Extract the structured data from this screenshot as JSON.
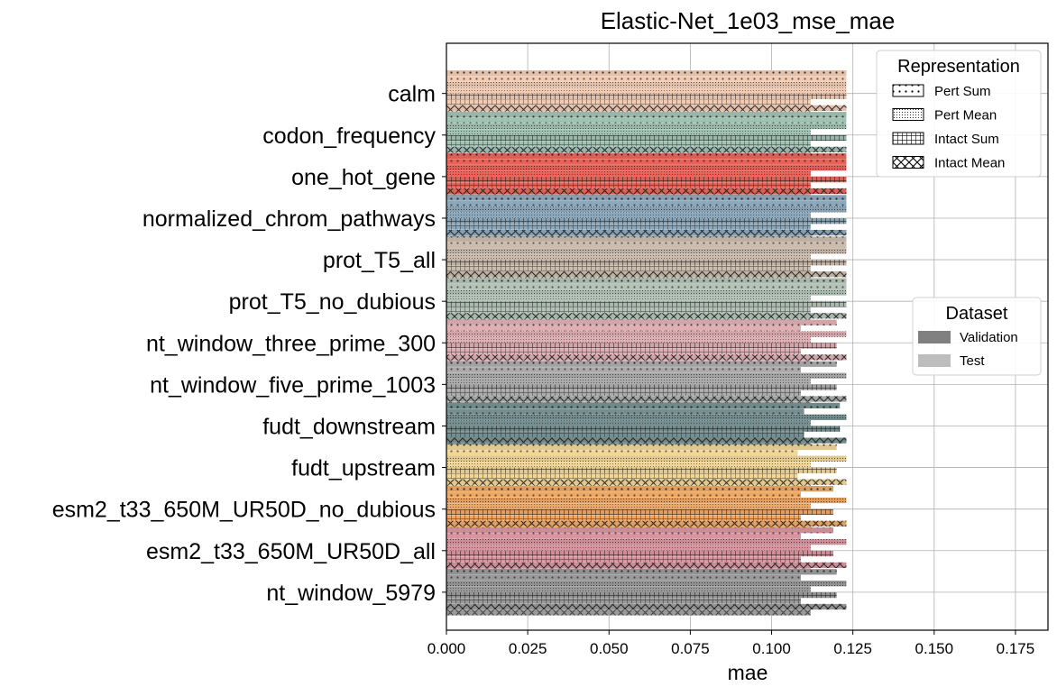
{
  "chart_data": {
    "type": "bar",
    "orientation": "horizontal",
    "title": "Elastic-Net_1e03_mse_mae",
    "xlabel": "mae",
    "ylabel": "",
    "xlim": [
      0,
      0.185
    ],
    "xticks": [
      "0.000",
      "0.025",
      "0.050",
      "0.075",
      "0.100",
      "0.125",
      "0.150",
      "0.175"
    ],
    "grid": true,
    "categories": [
      "calm",
      "codon_frequency",
      "one_hot_gene",
      "normalized_chrom_pathways",
      "prot_T5_all",
      "prot_T5_no_dubious",
      "nt_window_three_prime_300",
      "nt_window_five_prime_1003",
      "fudt_downstream",
      "fudt_upstream",
      "esm2_t33_650M_UR50D_no_dubious",
      "esm2_t33_650M_UR50D_all",
      "nt_window_5979"
    ],
    "category_colors": [
      "#f7cdb3",
      "#9ec3b2",
      "#ee5a4d",
      "#88a7bc",
      "#ccbcab",
      "#b3c4b8",
      "#e3aeb2",
      "#aaaaaa",
      "#6f8b8d",
      "#f6d893",
      "#f5a55c",
      "#dc929d",
      "#969696"
    ],
    "representations": [
      "Pert Sum",
      "Pert Mean",
      "Intact Sum",
      "Intact Mean"
    ],
    "representation_hatches": [
      "dots",
      "dense-dots",
      "grid",
      "cross"
    ],
    "datasets": [
      "Validation",
      "Test"
    ],
    "dataset_colors": [
      "#808080",
      "#bdbdbd"
    ],
    "legend_representation": {
      "title": "Representation",
      "placement": "top-right"
    },
    "legend_dataset": {
      "title": "Dataset",
      "placement": "center-right"
    },
    "series": [
      {
        "category": "calm",
        "representation": "Pert Sum",
        "validation": 0.123,
        "test": 0.123
      },
      {
        "category": "calm",
        "representation": "Pert Mean",
        "validation": 0.123,
        "test": 0.123
      },
      {
        "category": "calm",
        "representation": "Intact Sum",
        "validation": 0.123,
        "test": 0.112
      },
      {
        "category": "calm",
        "representation": "Intact Mean",
        "validation": 0.123,
        "test": 0.112
      },
      {
        "category": "codon_frequency",
        "representation": "Pert Sum",
        "validation": 0.123,
        "test": 0.123
      },
      {
        "category": "codon_frequency",
        "representation": "Pert Mean",
        "validation": 0.123,
        "test": 0.112
      },
      {
        "category": "codon_frequency",
        "representation": "Intact Sum",
        "validation": 0.123,
        "test": 0.112
      },
      {
        "category": "codon_frequency",
        "representation": "Intact Mean",
        "validation": 0.123,
        "test": 0.112
      },
      {
        "category": "one_hot_gene",
        "representation": "Pert Sum",
        "validation": 0.123,
        "test": 0.123
      },
      {
        "category": "one_hot_gene",
        "representation": "Pert Mean",
        "validation": 0.123,
        "test": 0.112
      },
      {
        "category": "one_hot_gene",
        "representation": "Intact Sum",
        "validation": 0.123,
        "test": 0.112
      },
      {
        "category": "one_hot_gene",
        "representation": "Intact Mean",
        "validation": 0.123,
        "test": 0.112
      },
      {
        "category": "normalized_chrom_pathways",
        "representation": "Pert Sum",
        "validation": 0.123,
        "test": 0.123
      },
      {
        "category": "normalized_chrom_pathways",
        "representation": "Pert Mean",
        "validation": 0.123,
        "test": 0.112
      },
      {
        "category": "normalized_chrom_pathways",
        "representation": "Intact Sum",
        "validation": 0.123,
        "test": 0.112
      },
      {
        "category": "normalized_chrom_pathways",
        "representation": "Intact Mean",
        "validation": 0.123,
        "test": 0.112
      },
      {
        "category": "prot_T5_all",
        "representation": "Pert Sum",
        "validation": 0.123,
        "test": 0.123
      },
      {
        "category": "prot_T5_all",
        "representation": "Pert Mean",
        "validation": 0.123,
        "test": 0.112
      },
      {
        "category": "prot_T5_all",
        "representation": "Intact Sum",
        "validation": 0.123,
        "test": 0.112
      },
      {
        "category": "prot_T5_all",
        "representation": "Intact Mean",
        "validation": 0.123,
        "test": 0.112
      },
      {
        "category": "prot_T5_no_dubious",
        "representation": "Pert Sum",
        "validation": 0.123,
        "test": 0.123
      },
      {
        "category": "prot_T5_no_dubious",
        "representation": "Pert Mean",
        "validation": 0.123,
        "test": 0.112
      },
      {
        "category": "prot_T5_no_dubious",
        "representation": "Intact Sum",
        "validation": 0.123,
        "test": 0.112
      },
      {
        "category": "prot_T5_no_dubious",
        "representation": "Intact Mean",
        "validation": 0.123,
        "test": 0.112
      },
      {
        "category": "nt_window_three_prime_300",
        "representation": "Pert Sum",
        "validation": 0.12,
        "test": 0.109
      },
      {
        "category": "nt_window_three_prime_300",
        "representation": "Pert Mean",
        "validation": 0.123,
        "test": 0.112
      },
      {
        "category": "nt_window_three_prime_300",
        "representation": "Intact Sum",
        "validation": 0.12,
        "test": 0.109
      },
      {
        "category": "nt_window_three_prime_300",
        "representation": "Intact Mean",
        "validation": 0.123,
        "test": 0.112
      },
      {
        "category": "nt_window_five_prime_1003",
        "representation": "Pert Sum",
        "validation": 0.12,
        "test": 0.109
      },
      {
        "category": "nt_window_five_prime_1003",
        "representation": "Pert Mean",
        "validation": 0.123,
        "test": 0.112
      },
      {
        "category": "nt_window_five_prime_1003",
        "representation": "Intact Sum",
        "validation": 0.12,
        "test": 0.109
      },
      {
        "category": "nt_window_five_prime_1003",
        "representation": "Intact Mean",
        "validation": 0.123,
        "test": 0.112
      },
      {
        "category": "fudt_downstream",
        "representation": "Pert Sum",
        "validation": 0.121,
        "test": 0.11
      },
      {
        "category": "fudt_downstream",
        "representation": "Pert Mean",
        "validation": 0.123,
        "test": 0.112
      },
      {
        "category": "fudt_downstream",
        "representation": "Intact Sum",
        "validation": 0.121,
        "test": 0.11
      },
      {
        "category": "fudt_downstream",
        "representation": "Intact Mean",
        "validation": 0.123,
        "test": 0.112
      },
      {
        "category": "fudt_upstream",
        "representation": "Pert Sum",
        "validation": 0.12,
        "test": 0.108
      },
      {
        "category": "fudt_upstream",
        "representation": "Pert Mean",
        "validation": 0.123,
        "test": 0.112
      },
      {
        "category": "fudt_upstream",
        "representation": "Intact Sum",
        "validation": 0.12,
        "test": 0.108
      },
      {
        "category": "fudt_upstream",
        "representation": "Intact Mean",
        "validation": 0.123,
        "test": 0.112
      },
      {
        "category": "esm2_t33_650M_UR50D_no_dubious",
        "representation": "Pert Sum",
        "validation": 0.119,
        "test": 0.109
      },
      {
        "category": "esm2_t33_650M_UR50D_no_dubious",
        "representation": "Pert Mean",
        "validation": 0.123,
        "test": 0.112
      },
      {
        "category": "esm2_t33_650M_UR50D_no_dubious",
        "representation": "Intact Sum",
        "validation": 0.119,
        "test": 0.109
      },
      {
        "category": "esm2_t33_650M_UR50D_no_dubious",
        "representation": "Intact Mean",
        "validation": 0.123,
        "test": 0.112
      },
      {
        "category": "esm2_t33_650M_UR50D_all",
        "representation": "Pert Sum",
        "validation": 0.119,
        "test": 0.109
      },
      {
        "category": "esm2_t33_650M_UR50D_all",
        "representation": "Pert Mean",
        "validation": 0.123,
        "test": 0.112
      },
      {
        "category": "esm2_t33_650M_UR50D_all",
        "representation": "Intact Sum",
        "validation": 0.119,
        "test": 0.109
      },
      {
        "category": "esm2_t33_650M_UR50D_all",
        "representation": "Intact Mean",
        "validation": 0.123,
        "test": 0.112
      },
      {
        "category": "nt_window_5979",
        "representation": "Pert Sum",
        "validation": 0.12,
        "test": 0.109
      },
      {
        "category": "nt_window_5979",
        "representation": "Pert Mean",
        "validation": 0.123,
        "test": 0.112
      },
      {
        "category": "nt_window_5979",
        "representation": "Intact Sum",
        "validation": 0.12,
        "test": 0.109
      },
      {
        "category": "nt_window_5979",
        "representation": "Intact Mean",
        "validation": 0.123,
        "test": 0.112
      }
    ]
  }
}
